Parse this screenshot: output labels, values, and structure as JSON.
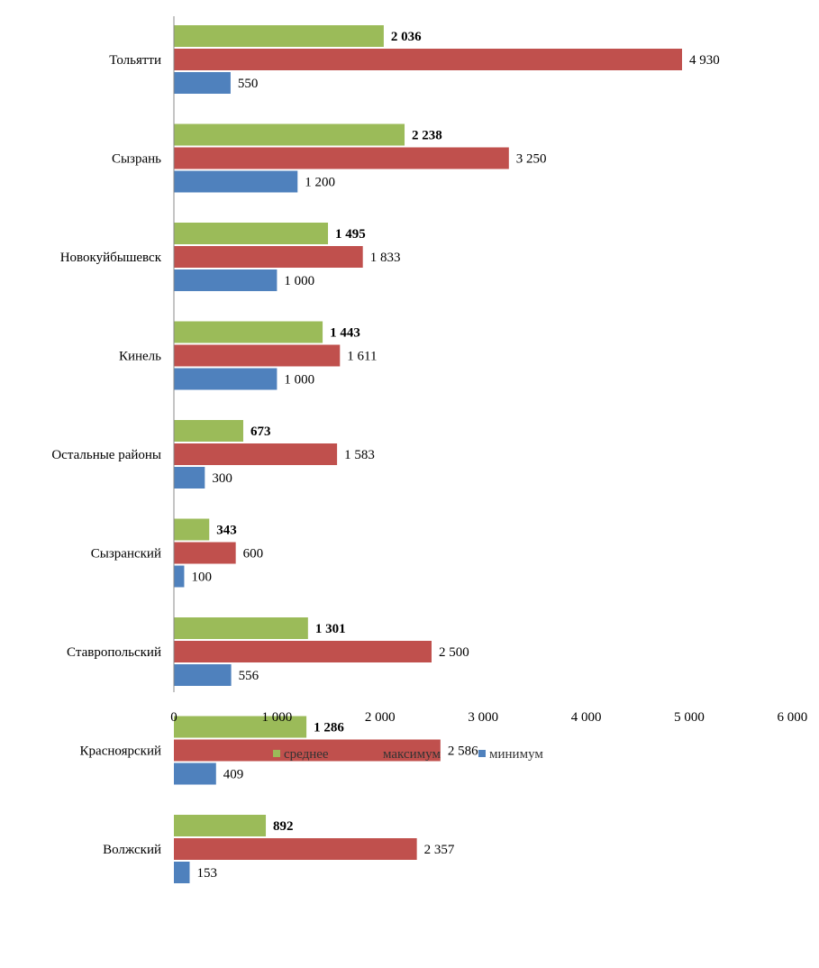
{
  "chart_data": {
    "type": "bar",
    "orientation": "horizontal",
    "categories": [
      "Тольятти",
      "Сызрань",
      "Новокуйбышевск",
      "Кинель",
      "Остальные районы",
      "Сызранский",
      "Ставропольский",
      "Красноярский",
      "Волжский"
    ],
    "series": [
      {
        "name": "среднее",
        "color": "#9bbb59",
        "labels_bold": true,
        "values": [
          2036,
          2238,
          1495,
          1443,
          673,
          343,
          1301,
          1286,
          892
        ],
        "labels": [
          "2 036",
          "2 238",
          "1 495",
          "1 443",
          "673",
          "343",
          "1 301",
          "1 286",
          "892"
        ]
      },
      {
        "name": "максимум",
        "color": "#c0504d",
        "labels_bold": false,
        "values": [
          4930,
          3250,
          1833,
          1611,
          1583,
          600,
          2500,
          2586,
          2357
        ],
        "labels": [
          "4 930",
          "3 250",
          "1 833",
          "1 611",
          "1 583",
          "600",
          "2 500",
          "2 586",
          "2 357"
        ]
      },
      {
        "name": "минимум",
        "color": "#4f81bd",
        "labels_bold": false,
        "values": [
          550,
          1200,
          1000,
          1000,
          300,
          100,
          556,
          409,
          153
        ],
        "labels": [
          "550",
          "1 200",
          "1 000",
          "1 000",
          "300",
          "100",
          "556",
          "409",
          "153"
        ]
      }
    ],
    "x_ticks": [
      0,
      1000,
      2000,
      3000,
      4000,
      5000,
      6000
    ],
    "x_tick_labels": [
      "0",
      "1 000",
      "2 000",
      "3 000",
      "4 000",
      "5 000",
      "6 000"
    ],
    "xlim": [
      0,
      6000
    ],
    "grid": false,
    "legend": "bottom",
    "title": "",
    "xlabel": "",
    "ylabel": ""
  }
}
